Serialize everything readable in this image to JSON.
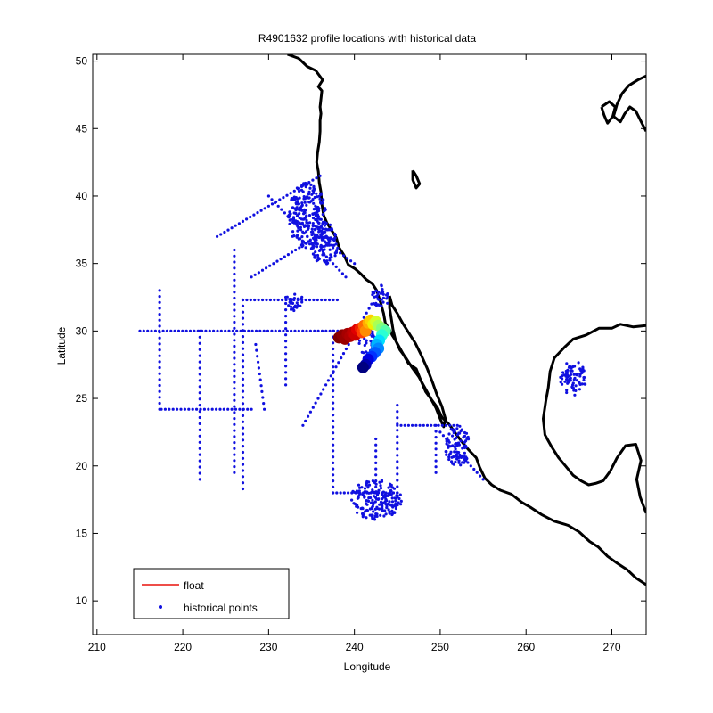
{
  "chart_data": {
    "type": "scatter",
    "title": "R4901632 profile locations with historical data",
    "xlabel": "Longitude",
    "ylabel": "Latitude",
    "xlim": [
      209.5,
      274
    ],
    "ylim": [
      7.5,
      50.5
    ],
    "xticks": [
      210,
      220,
      230,
      240,
      250,
      260,
      270
    ],
    "yticks": [
      10,
      15,
      20,
      25,
      30,
      35,
      40,
      45,
      50
    ],
    "grid": false,
    "legend": {
      "placement": "bottom-left",
      "entries": [
        {
          "label": "float",
          "color": "#e8120c",
          "marker": "line"
        },
        {
          "label": "historical points",
          "color": "#1010e0",
          "marker": "dot"
        }
      ]
    },
    "colors": {
      "historical": "#1010e0",
      "coast": "#000000",
      "float_line": "#e8120c"
    },
    "coastlines": [
      [
        [
          232.2,
          50.5
        ],
        [
          233.5,
          50.2
        ],
        [
          234.5,
          49.6
        ],
        [
          235.5,
          49.3
        ],
        [
          236.3,
          48.6
        ],
        [
          235.8,
          48.1
        ],
        [
          236.2,
          47.8
        ],
        [
          236.1,
          47.2
        ],
        [
          236.0,
          46.6
        ],
        [
          236.1,
          46.1
        ],
        [
          236.0,
          45.6
        ],
        [
          236.0,
          44.8
        ],
        [
          235.9,
          44.0
        ],
        [
          235.7,
          43.2
        ],
        [
          235.6,
          42.5
        ],
        [
          235.8,
          41.8
        ],
        [
          235.9,
          41.0
        ],
        [
          236.1,
          40.3
        ],
        [
          236.2,
          39.4
        ],
        [
          236.4,
          38.6
        ],
        [
          236.8,
          38.0
        ],
        [
          237.3,
          37.5
        ],
        [
          237.9,
          36.9
        ],
        [
          238.2,
          36.2
        ],
        [
          238.8,
          35.6
        ],
        [
          239.3,
          34.9
        ],
        [
          240.1,
          34.6
        ],
        [
          240.8,
          34.2
        ],
        [
          241.4,
          33.8
        ],
        [
          242.1,
          33.5
        ],
        [
          242.6,
          33.0
        ],
        [
          242.8,
          32.6
        ],
        [
          243.1,
          32.0
        ],
        [
          243.4,
          31.3
        ],
        [
          243.6,
          30.6
        ],
        [
          244.1,
          30.1
        ],
        [
          244.4,
          29.7
        ],
        [
          244.8,
          29.3
        ],
        [
          245.5,
          28.5
        ],
        [
          246.3,
          27.6
        ],
        [
          247.2,
          27.2
        ],
        [
          247.7,
          26.4
        ],
        [
          248.3,
          25.5
        ],
        [
          249.0,
          24.9
        ],
        [
          249.7,
          24.3
        ],
        [
          250.2,
          23.6
        ],
        [
          251.0,
          23.1
        ],
        [
          251.8,
          22.4
        ],
        [
          252.5,
          21.8
        ],
        [
          253.3,
          21.2
        ],
        [
          254.2,
          20.6
        ],
        [
          254.6,
          19.9
        ],
        [
          255.2,
          19.1
        ],
        [
          256.0,
          18.6
        ],
        [
          257.0,
          18.2
        ],
        [
          258.3,
          17.9
        ],
        [
          259.5,
          17.3
        ],
        [
          260.6,
          16.9
        ],
        [
          261.8,
          16.4
        ],
        [
          263.3,
          15.9
        ],
        [
          264.9,
          15.6
        ],
        [
          266.2,
          15.1
        ],
        [
          267.4,
          14.4
        ],
        [
          268.4,
          14.0
        ],
        [
          269.5,
          13.3
        ],
        [
          270.6,
          12.8
        ],
        [
          271.8,
          12.3
        ],
        [
          272.8,
          11.7
        ],
        [
          274.0,
          11.2
        ]
      ],
      [
        [
          244.1,
          32.6
        ],
        [
          244.4,
          31.9
        ],
        [
          245.0,
          31.3
        ],
        [
          245.6,
          30.6
        ],
        [
          246.3,
          29.9
        ],
        [
          247.1,
          29.1
        ],
        [
          247.8,
          28.2
        ],
        [
          248.5,
          27.2
        ],
        [
          249.1,
          26.2
        ],
        [
          249.6,
          25.3
        ],
        [
          250.2,
          24.4
        ],
        [
          250.6,
          23.5
        ],
        [
          250.4,
          22.9
        ],
        [
          250.0,
          23.5
        ],
        [
          249.5,
          24.3
        ],
        [
          248.8,
          25.1
        ],
        [
          248.2,
          25.8
        ],
        [
          247.5,
          26.6
        ],
        [
          246.7,
          27.3
        ],
        [
          246.0,
          28.0
        ],
        [
          245.3,
          28.6
        ],
        [
          244.8,
          29.3
        ],
        [
          244.5,
          30.1
        ],
        [
          244.3,
          30.9
        ],
        [
          244.1,
          31.7
        ],
        [
          244.1,
          32.6
        ]
      ],
      [
        [
          246.8,
          41.9
        ],
        [
          247.2,
          41.5
        ],
        [
          247.6,
          40.9
        ],
        [
          247.2,
          40.6
        ],
        [
          246.8,
          41.2
        ],
        [
          246.8,
          41.9
        ]
      ],
      [
        [
          274.0,
          30.4
        ],
        [
          272.5,
          30.3
        ],
        [
          271.0,
          30.5
        ],
        [
          270.0,
          30.2
        ],
        [
          268.5,
          30.2
        ],
        [
          267.0,
          29.7
        ],
        [
          265.5,
          29.4
        ],
        [
          264.5,
          28.8
        ],
        [
          263.3,
          28.0
        ],
        [
          262.8,
          27.0
        ],
        [
          262.6,
          25.8
        ],
        [
          262.3,
          24.8
        ],
        [
          262.0,
          23.5
        ],
        [
          262.2,
          22.3
        ],
        [
          263.0,
          21.4
        ],
        [
          263.8,
          20.6
        ],
        [
          264.6,
          20.0
        ],
        [
          265.5,
          19.3
        ],
        [
          266.4,
          18.9
        ],
        [
          267.3,
          18.6
        ],
        [
          268.1,
          18.7
        ],
        [
          269.0,
          18.9
        ],
        [
          269.8,
          19.6
        ],
        [
          270.6,
          20.6
        ],
        [
          271.6,
          21.5
        ],
        [
          272.8,
          21.6
        ],
        [
          273.4,
          20.4
        ],
        [
          272.9,
          19.0
        ],
        [
          273.3,
          17.7
        ],
        [
          274.0,
          16.5
        ]
      ],
      [
        [
          274.0,
          48.9
        ],
        [
          273.0,
          48.6
        ],
        [
          272.0,
          48.2
        ],
        [
          271.2,
          47.6
        ],
        [
          270.6,
          46.8
        ],
        [
          270.2,
          45.9
        ],
        [
          271.0,
          45.5
        ],
        [
          271.5,
          46.1
        ],
        [
          272.1,
          46.6
        ],
        [
          272.8,
          46.3
        ],
        [
          273.5,
          45.4
        ],
        [
          274.0,
          44.8
        ]
      ],
      [
        [
          268.8,
          46.6
        ],
        [
          269.7,
          47.0
        ],
        [
          270.4,
          46.6
        ],
        [
          270.1,
          45.9
        ],
        [
          269.5,
          45.4
        ],
        [
          269.1,
          46.0
        ],
        [
          268.8,
          46.6
        ]
      ]
    ],
    "float_profiles": [
      {
        "lon": 238.2,
        "lat": 29.5,
        "color": "#7f0000"
      },
      {
        "lon": 238.6,
        "lat": 29.7,
        "color": "#8f0000"
      },
      {
        "lon": 238.9,
        "lat": 29.4,
        "color": "#9a0000"
      },
      {
        "lon": 239.2,
        "lat": 29.8,
        "color": "#a50000"
      },
      {
        "lon": 239.5,
        "lat": 29.6,
        "color": "#b00000"
      },
      {
        "lon": 239.8,
        "lat": 29.9,
        "color": "#bf0000"
      },
      {
        "lon": 240.1,
        "lat": 29.7,
        "color": "#cc0000"
      },
      {
        "lon": 240.3,
        "lat": 30.1,
        "color": "#e00000"
      },
      {
        "lon": 240.7,
        "lat": 30.2,
        "color": "#f02000"
      },
      {
        "lon": 240.9,
        "lat": 29.9,
        "color": "#ff4000"
      },
      {
        "lon": 241.1,
        "lat": 30.4,
        "color": "#ff6a00"
      },
      {
        "lon": 241.3,
        "lat": 30.0,
        "color": "#ff8c00"
      },
      {
        "lon": 241.6,
        "lat": 30.6,
        "color": "#ffae00"
      },
      {
        "lon": 241.9,
        "lat": 30.8,
        "color": "#ffd000"
      },
      {
        "lon": 242.2,
        "lat": 30.5,
        "color": "#f0f000"
      },
      {
        "lon": 242.5,
        "lat": 30.7,
        "color": "#d4ff2a"
      },
      {
        "lon": 242.8,
        "lat": 30.4,
        "color": "#aaff55"
      },
      {
        "lon": 243.2,
        "lat": 30.2,
        "color": "#80ff80"
      },
      {
        "lon": 243.6,
        "lat": 30.0,
        "color": "#55ffaa"
      },
      {
        "lon": 243.2,
        "lat": 29.7,
        "color": "#2affd4"
      },
      {
        "lon": 242.9,
        "lat": 29.3,
        "color": "#00e0ff"
      },
      {
        "lon": 242.6,
        "lat": 29.0,
        "color": "#00b4ff"
      },
      {
        "lon": 242.8,
        "lat": 28.7,
        "color": "#0088ff"
      },
      {
        "lon": 242.4,
        "lat": 28.4,
        "color": "#005cff"
      },
      {
        "lon": 242.0,
        "lat": 28.1,
        "color": "#0030ff"
      },
      {
        "lon": 241.6,
        "lat": 27.9,
        "color": "#0000e0"
      },
      {
        "lon": 241.3,
        "lat": 27.5,
        "color": "#0000b0"
      },
      {
        "lon": 241.0,
        "lat": 27.3,
        "color": "#000080"
      }
    ],
    "historical_lines": [
      [
        [
          215.0,
          30.0
        ],
        [
          238.5,
          30.0
        ]
      ],
      [
        [
          217.5,
          24.2
        ],
        [
          228.0,
          24.2
        ]
      ],
      [
        [
          217.3,
          33.0
        ],
        [
          217.3,
          24.2
        ]
      ],
      [
        [
          222.0,
          30.0
        ],
        [
          222.0,
          19.0
        ]
      ],
      [
        [
          226.0,
          36.0
        ],
        [
          226.0,
          19.5
        ]
      ],
      [
        [
          227.0,
          32.3
        ],
        [
          227.0,
          18.3
        ]
      ],
      [
        [
          227.0,
          32.3
        ],
        [
          238.0,
          32.3
        ]
      ],
      [
        [
          224.0,
          37.0
        ],
        [
          236.0,
          41.5
        ]
      ],
      [
        [
          228.0,
          34.0
        ],
        [
          237.0,
          37.5
        ]
      ],
      [
        [
          230.0,
          40.0
        ],
        [
          239.0,
          34.0
        ]
      ],
      [
        [
          232.5,
          38.5
        ],
        [
          240.0,
          35.0
        ]
      ],
      [
        [
          237.5,
          30.0
        ],
        [
          237.5,
          18.0
        ]
      ],
      [
        [
          237.5,
          18.0
        ],
        [
          245.0,
          18.0
        ]
      ],
      [
        [
          242.5,
          22.0
        ],
        [
          242.5,
          18.0
        ]
      ],
      [
        [
          245.0,
          24.5
        ],
        [
          245.0,
          18.0
        ]
      ],
      [
        [
          234.0,
          23.0
        ],
        [
          242.0,
          32.0
        ]
      ],
      [
        [
          245.0,
          23.0
        ],
        [
          252.0,
          23.0
        ]
      ],
      [
        [
          249.5,
          23.0
        ],
        [
          249.5,
          19.5
        ]
      ],
      [
        [
          250.0,
          22.5
        ],
        [
          255.0,
          19.0
        ]
      ],
      [
        [
          232.0,
          32.5
        ],
        [
          232.0,
          26.0
        ]
      ],
      [
        [
          228.5,
          29.0
        ],
        [
          229.5,
          24.2
        ]
      ]
    ],
    "historical_clusters": [
      {
        "lon": 234.5,
        "lat": 38.5,
        "rx": 2.2,
        "ry": 2.5
      },
      {
        "lon": 236.5,
        "lat": 36.5,
        "rx": 1.6,
        "ry": 1.6
      },
      {
        "lon": 233.0,
        "lat": 32.2,
        "rx": 1.0,
        "ry": 0.7
      },
      {
        "lon": 243.0,
        "lat": 32.5,
        "rx": 1.0,
        "ry": 0.9
      },
      {
        "lon": 241.5,
        "lat": 29.2,
        "rx": 1.0,
        "ry": 1.0
      },
      {
        "lon": 242.5,
        "lat": 17.5,
        "rx": 3.0,
        "ry": 1.5
      },
      {
        "lon": 265.5,
        "lat": 26.5,
        "rx": 1.5,
        "ry": 1.3
      },
      {
        "lon": 252.0,
        "lat": 21.5,
        "rx": 1.5,
        "ry": 1.5
      }
    ]
  }
}
